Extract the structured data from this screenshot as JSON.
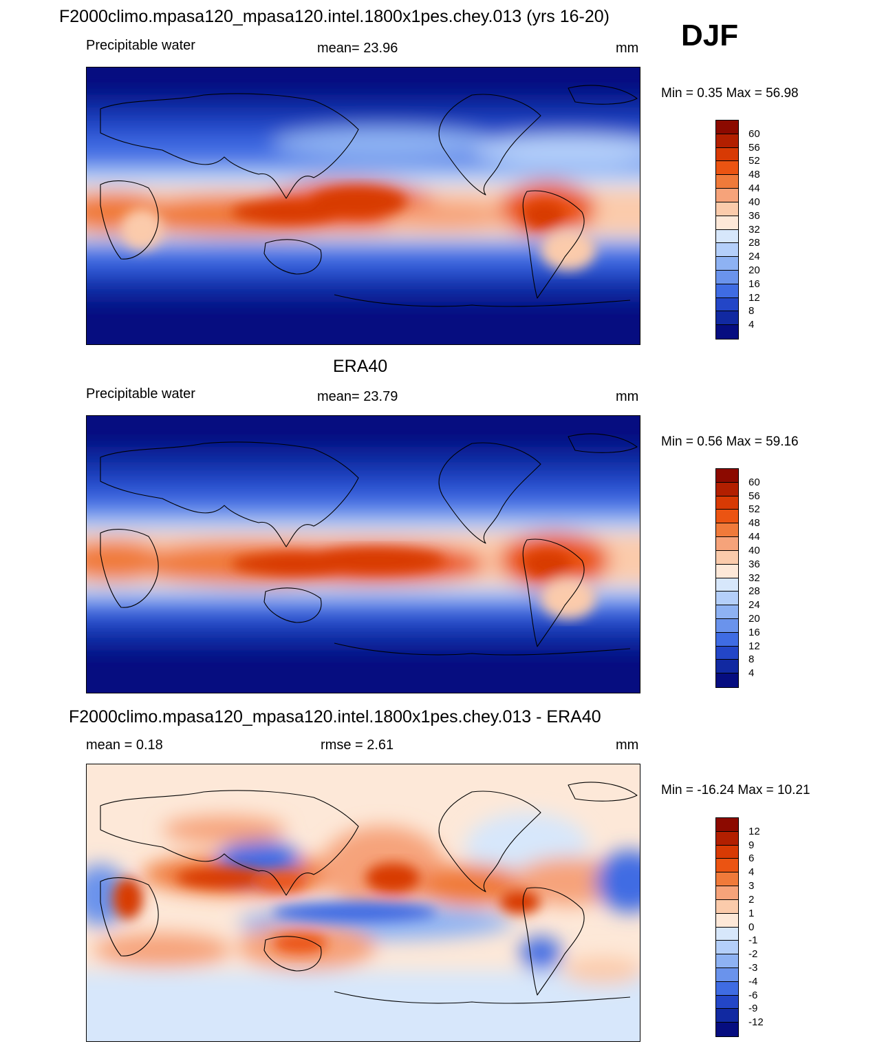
{
  "figure": {
    "title": "F2000climo.mpasa120_mpasa120.intel.1800x1pes.chey.013 (yrs 16-20)",
    "season": "DJF"
  },
  "panels": [
    {
      "id": "model",
      "heading": "",
      "left_label": "Precipitable water",
      "center_label": "mean=  23.96",
      "right_label": "mm",
      "minmax": "Min =    0.35 Max =   56.98",
      "colorbar": {
        "labels": [
          "60",
          "56",
          "52",
          "48",
          "44",
          "40",
          "36",
          "32",
          "28",
          "24",
          "20",
          "16",
          "12",
          "8",
          "4"
        ],
        "colors": [
          "#8c0a00",
          "#b21f00",
          "#d83a04",
          "#eb5412",
          "#f07a3a",
          "#f6a37a",
          "#fbcbab",
          "#fde8d8",
          "#d7e7fb",
          "#b4cffa",
          "#8eb2f3",
          "#6a93ec",
          "#3f6ce3",
          "#2346c7",
          "#1129a1",
          "#060d80"
        ]
      }
    },
    {
      "id": "obs",
      "heading": "ERA40",
      "left_label": "Precipitable water",
      "center_label": "mean=  23.79",
      "right_label": "mm",
      "minmax": "Min =    0.56 Max =   59.16",
      "colorbar": {
        "labels": [
          "60",
          "56",
          "52",
          "48",
          "44",
          "40",
          "36",
          "32",
          "28",
          "24",
          "20",
          "16",
          "12",
          "8",
          "4"
        ],
        "colors": [
          "#8c0a00",
          "#b21f00",
          "#d83a04",
          "#eb5412",
          "#f07a3a",
          "#f6a37a",
          "#fbcbab",
          "#fde8d8",
          "#d7e7fb",
          "#b4cffa",
          "#8eb2f3",
          "#6a93ec",
          "#3f6ce3",
          "#2346c7",
          "#1129a1",
          "#060d80"
        ]
      }
    },
    {
      "id": "diff",
      "heading": "F2000climo.mpasa120_mpasa120.intel.1800x1pes.chey.013 - ERA40",
      "left_label": "mean =    0.18",
      "center_label": "rmse =    2.61",
      "right_label": "mm",
      "minmax": "Min = -16.24 Max =  10.21",
      "colorbar": {
        "labels": [
          "12",
          "9",
          "6",
          "4",
          "3",
          "2",
          "1",
          "0",
          "-1",
          "-2",
          "-3",
          "-4",
          "-6",
          "-9",
          "-12"
        ],
        "colors": [
          "#8c0a00",
          "#b21f00",
          "#d83a04",
          "#eb5412",
          "#f07a3a",
          "#f6a37a",
          "#fbcbab",
          "#fde8d8",
          "#d7e7fb",
          "#b4cffa",
          "#8eb2f3",
          "#6a93ec",
          "#3f6ce3",
          "#2346c7",
          "#1129a1",
          "#060d80"
        ]
      }
    }
  ]
}
